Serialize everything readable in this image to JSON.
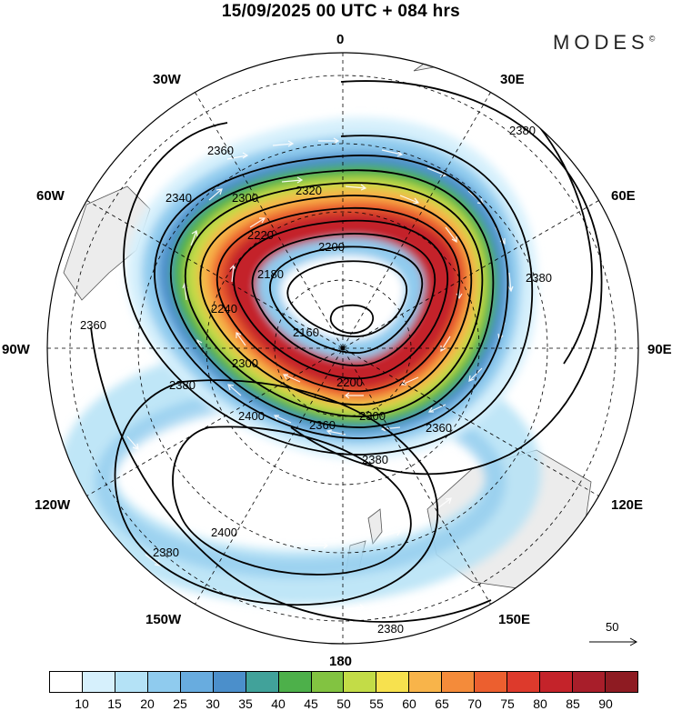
{
  "title": "15/09/2025  00 UTC  + 084 hrs",
  "brand": {
    "name": "MODES",
    "mark": "©"
  },
  "longitude_labels": [
    "0",
    "30E",
    "60E",
    "90E",
    "120E",
    "150E",
    "180",
    "150W",
    "120W",
    "90W",
    "60W",
    "30W"
  ],
  "contour_labels": {
    "c2360": "2360",
    "c2340": "2340",
    "c2320": "2320",
    "c2300": "2300",
    "c2280": "2280",
    "c2260": "2260",
    "c2240": "2240",
    "c2220": "2220",
    "c2200": "2200",
    "c2180": "2180",
    "c2160": "2160",
    "c2380": "2380",
    "c2400": "2400"
  },
  "wind_reference": {
    "label": "50"
  },
  "colorbar": {
    "labels": [
      "10",
      "15",
      "20",
      "25",
      "30",
      "35",
      "40",
      "45",
      "50",
      "55",
      "60",
      "65",
      "70",
      "75",
      "80",
      "85",
      "90"
    ],
    "colors": [
      "#ffffff",
      "#d6f0fc",
      "#b4e2f6",
      "#8fcbee",
      "#68acdf",
      "#4b8fcb",
      "#41a29a",
      "#4db04a",
      "#82c341",
      "#c3dc47",
      "#f7e14e",
      "#f8b44a",
      "#f48b3a",
      "#ec5f2f",
      "#dd3a2c",
      "#c4232a",
      "#a81e2a",
      "#8e1b22"
    ]
  }
}
